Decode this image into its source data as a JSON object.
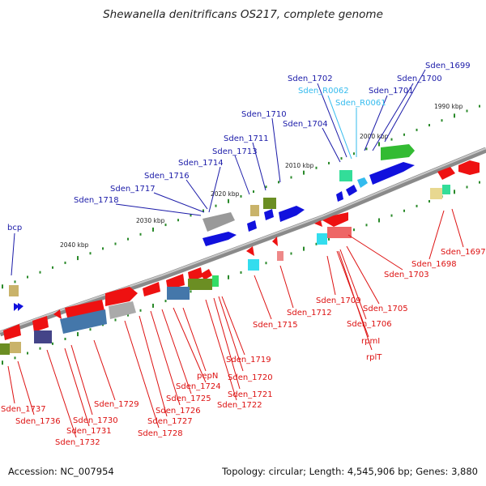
{
  "title": "Shewanella denitrificans OS217, complete genome",
  "footer": {
    "accession": "Accession: NC_007954",
    "summary": "Topology: circular; Length: 4,545,906 bp; Genes: 3,880"
  },
  "colors": {
    "forward_label": "#1a1aa8",
    "rna_label": "#33bbee",
    "reverse_label": "#dd1111",
    "backbone": "#777777"
  },
  "ticks": [
    "1990 kbp",
    "2000 kbp",
    "2010 kbp",
    "2020 kbp",
    "2030 kbp",
    "2040 kbp"
  ],
  "forward_labels": [
    "Sden_1699",
    "Sden_1700",
    "Sden_1701",
    "Sden_1702",
    "Sden_R0062",
    "Sden_R0061",
    "Sden_1704",
    "Sden_1710",
    "Sden_1711",
    "Sden_1713",
    "Sden_1714",
    "Sden_1716",
    "Sden_1717",
    "Sden_1718",
    "bcp"
  ],
  "reverse_labels": [
    "Sden_1697",
    "Sden_1698",
    "Sden_1703",
    "Sden_1705",
    "Sden_1706",
    "Sden_1709",
    "rpmI",
    "rplT",
    "Sden_1712",
    "Sden_1715",
    "Sden_1719",
    "Sden_1720",
    "Sden_1721",
    "Sden_1722",
    "pepN",
    "Sden_1724",
    "Sden_1725",
    "Sden_1726",
    "Sden_1727",
    "Sden_1728",
    "Sden_1729",
    "Sden_1730",
    "Sden_1731",
    "Sden_1732",
    "Sden_1736",
    "Sden_1737"
  ]
}
